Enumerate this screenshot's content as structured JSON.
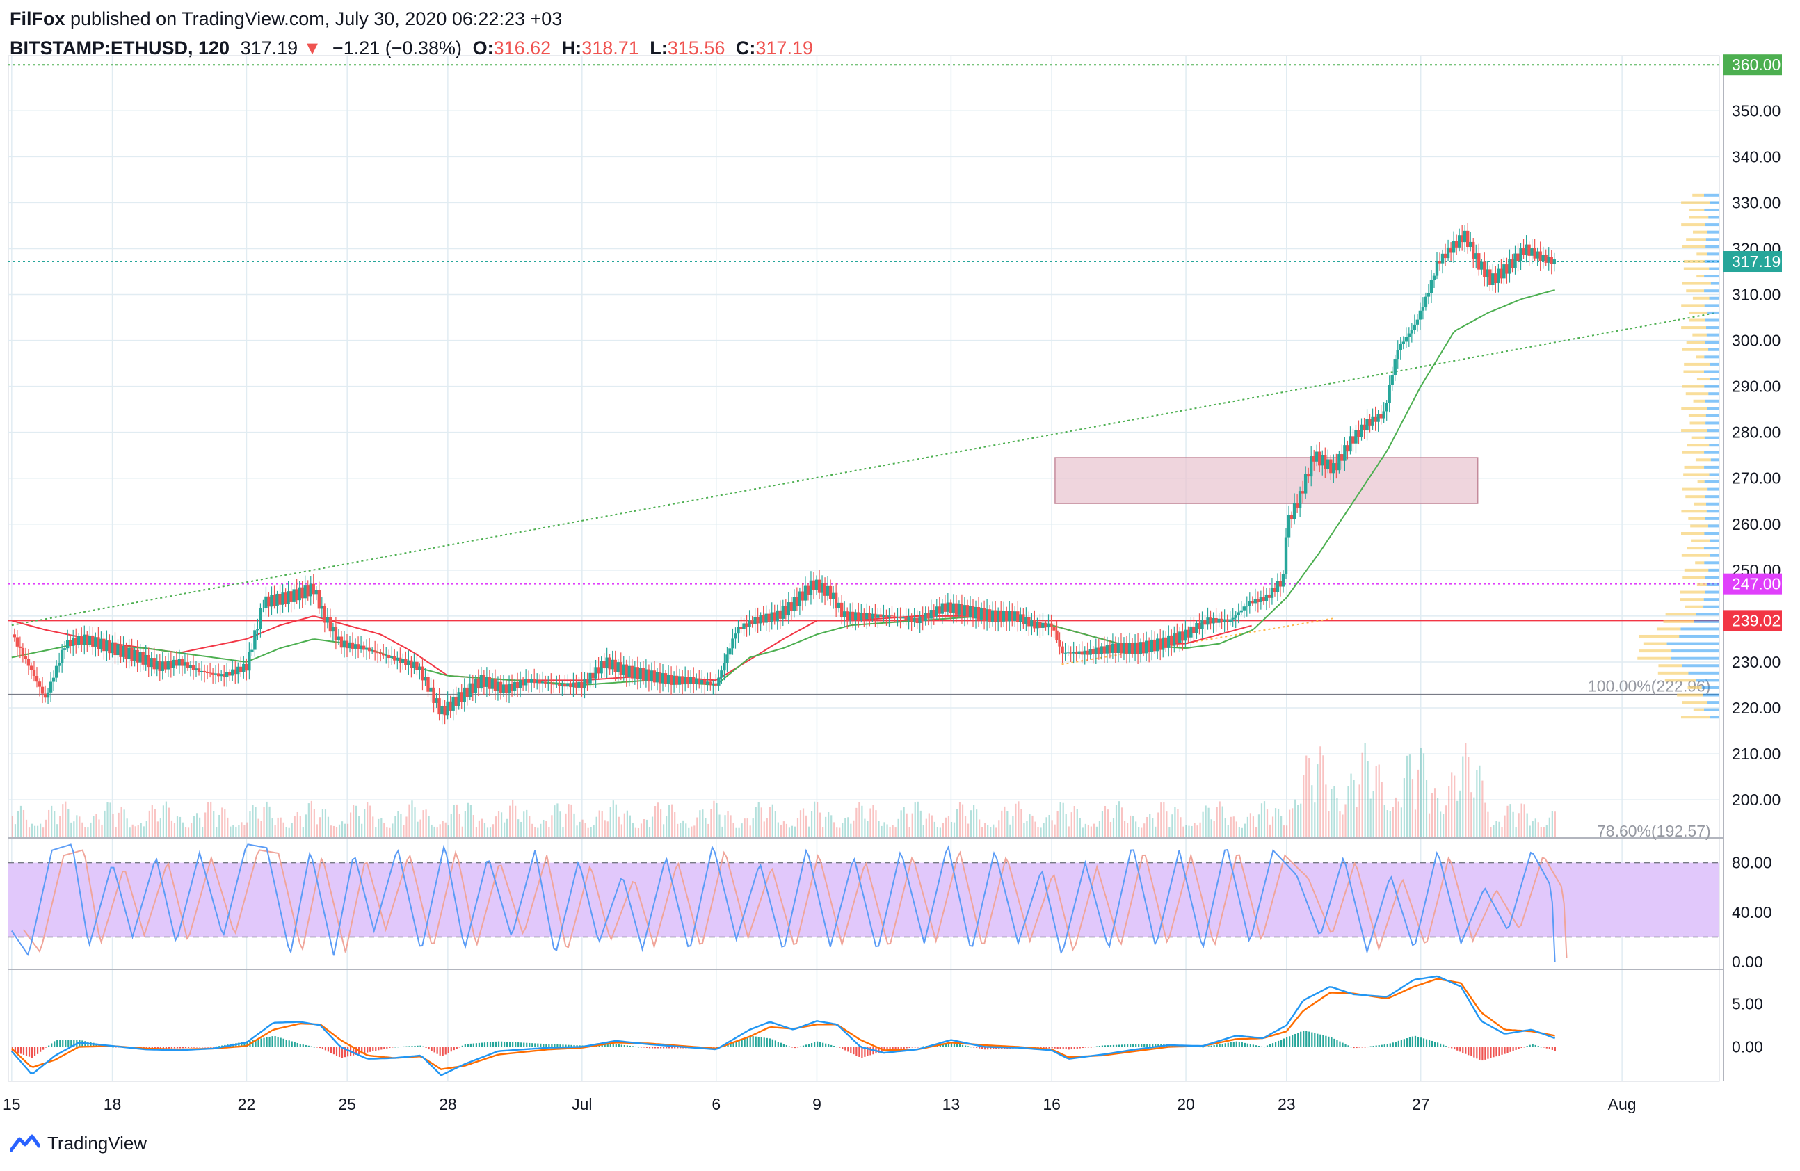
{
  "header": {
    "author": "FilFox",
    "published": "published on TradingView.com, July 30, 2020 06:22:23 +03",
    "symbol": "BITSTAMP:ETHUSD, 120",
    "last": "317.19",
    "change_arrow": "▼",
    "change": "−1.21 (−0.38%)",
    "o_label": "O:",
    "o": "316.62",
    "h_label": "H:",
    "h": "318.71",
    "l_label": "L:",
    "l": "315.56",
    "c_label": "C:",
    "c": "317.19"
  },
  "footer": {
    "brand": "TradingView"
  },
  "colors": {
    "up": "#26a69a",
    "down": "#ef5350",
    "grid": "#e1ecf2",
    "stoch_band": "#e1c8fb",
    "stoch_k": "#5b9cf6",
    "stoch_d": "#f0a59a",
    "macd": "#2196f3",
    "signal": "#ff6d00",
    "ma_green": "#4caf50",
    "ma_red": "#f23645",
    "zone": "#e8c3cf"
  },
  "chart_data": {
    "type": "candlestick",
    "symbol": "BITSTAMP:ETHUSD",
    "interval": "120",
    "x_ticks": [
      "15",
      "18",
      "22",
      "25",
      "28",
      "Jul",
      "6",
      "9",
      "13",
      "16",
      "20",
      "23",
      "27",
      "Aug"
    ],
    "x_tick_days": [
      15,
      18,
      22,
      25,
      28,
      32,
      36,
      39,
      43,
      46,
      50,
      53,
      57,
      63
    ],
    "x_range_days": [
      14.9,
      65.9
    ],
    "price_axis": {
      "ticks": [
        "200.00",
        "210.00",
        "220.00",
        "230.00",
        "240.00",
        "250.00",
        "260.00",
        "270.00",
        "280.00",
        "290.00",
        "300.00",
        "310.00",
        "320.00",
        "330.00",
        "340.00",
        "350.00"
      ],
      "ylim": [
        192,
        362
      ]
    },
    "price_labels": [
      {
        "value": "360.00",
        "color": "#4caf50"
      },
      {
        "value": "317.19",
        "color": "#26a69a"
      },
      {
        "value": "247.00",
        "color": "#e040fb"
      },
      {
        "value": "239.02",
        "color": "#f23645"
      }
    ],
    "horizontal_lines": [
      {
        "price": 360.0,
        "style": "dotted",
        "color": "#4caf50"
      },
      {
        "price": 317.19,
        "style": "dotted",
        "color": "#26a69a"
      },
      {
        "price": 247.0,
        "style": "dotted",
        "color": "#e040fb"
      },
      {
        "price": 239.02,
        "style": "solid",
        "color": "#f23645"
      },
      {
        "price": 222.9,
        "style": "solid",
        "color": "#787b86"
      }
    ],
    "trendlines": [
      {
        "from": {
          "day": 15.0,
          "price": 238
        },
        "to": {
          "day": 65.8,
          "price": 306
        },
        "color": "#4caf50"
      },
      {
        "from": {
          "day": 46.3,
          "price": 229.5
        },
        "to": {
          "day": 54.4,
          "price": 239.5
        },
        "color": "#ffb74d"
      }
    ],
    "zone": {
      "from_day": 46.1,
      "to_day": 58.7,
      "top": 274.5,
      "bottom": 264.5
    },
    "fib_labels": [
      "100.00%(222.96)",
      "78.60%(192.57)"
    ],
    "candles_ohlc_keypoints": [
      [
        15.0,
        236
      ],
      [
        15.6,
        228
      ],
      [
        16.0,
        222
      ],
      [
        16.6,
        234
      ],
      [
        17.2,
        235
      ],
      [
        18.0,
        233
      ],
      [
        18.8,
        231
      ],
      [
        19.4,
        229
      ],
      [
        20.0,
        230
      ],
      [
        20.6,
        228
      ],
      [
        21.3,
        227
      ],
      [
        22.0,
        229
      ],
      [
        22.5,
        243
      ],
      [
        23.2,
        244
      ],
      [
        24.0,
        246
      ],
      [
        24.3,
        240
      ],
      [
        24.8,
        234
      ],
      [
        25.5,
        233
      ],
      [
        26.3,
        231
      ],
      [
        27.1,
        229
      ],
      [
        27.8,
        219
      ],
      [
        28.3,
        222
      ],
      [
        29.0,
        226
      ],
      [
        29.7,
        224
      ],
      [
        30.4,
        226
      ],
      [
        31.3,
        225
      ],
      [
        32.0,
        225
      ],
      [
        32.7,
        230
      ],
      [
        33.3,
        228
      ],
      [
        34.0,
        227
      ],
      [
        34.7,
        226
      ],
      [
        35.3,
        226
      ],
      [
        36.0,
        225
      ],
      [
        36.6,
        237
      ],
      [
        37.1,
        239
      ],
      [
        37.8,
        240
      ],
      [
        38.2,
        242
      ],
      [
        38.9,
        247
      ],
      [
        39.4,
        245
      ],
      [
        39.8,
        240
      ],
      [
        40.5,
        240
      ],
      [
        41.2,
        240
      ],
      [
        42.0,
        239
      ],
      [
        42.8,
        242
      ],
      [
        43.5,
        241
      ],
      [
        44.2,
        240
      ],
      [
        44.9,
        240
      ],
      [
        45.5,
        238
      ],
      [
        46.0,
        238
      ],
      [
        46.3,
        232
      ],
      [
        47.0,
        232
      ],
      [
        47.8,
        233
      ],
      [
        48.6,
        233
      ],
      [
        49.3,
        234
      ],
      [
        50.0,
        236
      ],
      [
        50.6,
        239
      ],
      [
        51.3,
        239
      ],
      [
        51.9,
        243
      ],
      [
        52.4,
        244
      ],
      [
        52.9,
        248
      ],
      [
        53.0,
        260
      ],
      [
        53.4,
        266
      ],
      [
        53.8,
        275
      ],
      [
        54.4,
        272
      ],
      [
        54.9,
        278
      ],
      [
        55.4,
        282
      ],
      [
        55.9,
        284
      ],
      [
        56.3,
        298
      ],
      [
        56.8,
        303
      ],
      [
        57.2,
        310
      ],
      [
        57.5,
        317
      ],
      [
        57.9,
        320
      ],
      [
        58.3,
        323
      ],
      [
        58.7,
        317
      ],
      [
        59.1,
        313
      ],
      [
        59.6,
        316
      ],
      [
        60.1,
        320
      ],
      [
        60.6,
        318
      ],
      [
        61.0,
        317
      ]
    ],
    "sma_green_keypoints": [
      [
        15.0,
        231
      ],
      [
        17.0,
        234
      ],
      [
        19.0,
        233
      ],
      [
        21.0,
        231
      ],
      [
        22.0,
        230
      ],
      [
        23.0,
        233
      ],
      [
        24.0,
        235
      ],
      [
        25.0,
        234
      ],
      [
        26.0,
        232
      ],
      [
        27.0,
        229
      ],
      [
        28.0,
        227
      ],
      [
        30.0,
        226
      ],
      [
        32.0,
        225
      ],
      [
        34.0,
        226
      ],
      [
        36.0,
        225
      ],
      [
        37.0,
        231
      ],
      [
        38.0,
        233
      ],
      [
        39.0,
        236
      ],
      [
        40.0,
        238
      ],
      [
        42.0,
        239
      ],
      [
        44.0,
        240
      ],
      [
        46.0,
        238
      ],
      [
        48.0,
        234
      ],
      [
        50.0,
        233
      ],
      [
        51.0,
        234
      ],
      [
        52.0,
        237
      ],
      [
        53.0,
        244
      ],
      [
        54.0,
        254
      ],
      [
        55.0,
        265
      ],
      [
        56.0,
        276
      ],
      [
        57.0,
        290
      ],
      [
        58.0,
        302
      ],
      [
        59.0,
        306
      ],
      [
        60.0,
        309
      ],
      [
        61.0,
        311
      ]
    ],
    "sma_red_keypoints": [
      [
        15.0,
        239
      ],
      [
        16.0,
        237
      ],
      [
        18.0,
        234
      ],
      [
        20.0,
        232
      ],
      [
        22.0,
        235
      ],
      [
        23.0,
        238
      ],
      [
        24.0,
        240
      ],
      [
        25.0,
        238
      ],
      [
        26.0,
        236
      ],
      [
        27.0,
        232
      ],
      [
        28.0,
        227
      ],
      [
        30.0,
        226
      ],
      [
        32.0,
        226
      ],
      [
        34.0,
        227
      ],
      [
        36.0,
        226
      ],
      [
        38.0,
        235
      ],
      [
        39.0,
        239
      ],
      [
        40.0,
        239
      ],
      [
        42.0,
        240
      ],
      [
        44.0,
        240
      ],
      [
        46.0,
        238
      ],
      [
        48.0,
        234
      ],
      [
        50.0,
        234
      ],
      [
        52.0,
        238
      ]
    ],
    "stoch": {
      "ticks": [
        "0.00",
        "40.00",
        "80.00"
      ],
      "ylim": [
        -5,
        100
      ],
      "band": [
        20,
        80
      ],
      "k_keypoints": [
        [
          15.0,
          25
        ],
        [
          15.5,
          5
        ],
        [
          16.2,
          90
        ],
        [
          16.8,
          95
        ],
        [
          17.3,
          12
        ],
        [
          18.0,
          80
        ],
        [
          18.6,
          20
        ],
        [
          19.3,
          85
        ],
        [
          19.9,
          15
        ],
        [
          20.6,
          88
        ],
        [
          21.3,
          20
        ],
        [
          22.0,
          95
        ],
        [
          22.6,
          92
        ],
        [
          23.3,
          5
        ],
        [
          23.9,
          90
        ],
        [
          24.6,
          5
        ],
        [
          25.2,
          88
        ],
        [
          25.8,
          25
        ],
        [
          26.5,
          92
        ],
        [
          27.2,
          8
        ],
        [
          27.9,
          95
        ],
        [
          28.5,
          10
        ],
        [
          29.2,
          85
        ],
        [
          29.9,
          20
        ],
        [
          30.6,
          90
        ],
        [
          31.2,
          5
        ],
        [
          31.9,
          82
        ],
        [
          32.5,
          15
        ],
        [
          33.2,
          70
        ],
        [
          33.8,
          10
        ],
        [
          34.5,
          85
        ],
        [
          35.2,
          8
        ],
        [
          35.9,
          95
        ],
        [
          36.6,
          18
        ],
        [
          37.3,
          80
        ],
        [
          38.0,
          8
        ],
        [
          38.7,
          92
        ],
        [
          39.4,
          12
        ],
        [
          40.1,
          85
        ],
        [
          40.8,
          8
        ],
        [
          41.5,
          90
        ],
        [
          42.2,
          15
        ],
        [
          42.9,
          95
        ],
        [
          43.6,
          8
        ],
        [
          44.3,
          90
        ],
        [
          45.0,
          15
        ],
        [
          45.7,
          75
        ],
        [
          46.3,
          5
        ],
        [
          47.0,
          80
        ],
        [
          47.7,
          10
        ],
        [
          48.4,
          95
        ],
        [
          49.1,
          12
        ],
        [
          49.8,
          90
        ],
        [
          50.5,
          10
        ],
        [
          51.2,
          95
        ],
        [
          51.9,
          15
        ],
        [
          52.6,
          90
        ],
        [
          53.3,
          70
        ],
        [
          54.0,
          20
        ],
        [
          54.7,
          85
        ],
        [
          55.4,
          8
        ],
        [
          56.1,
          70
        ],
        [
          56.8,
          10
        ],
        [
          57.5,
          90
        ],
        [
          58.2,
          15
        ],
        [
          58.9,
          60
        ],
        [
          59.6,
          25
        ],
        [
          60.3,
          90
        ],
        [
          60.9,
          60
        ],
        [
          61.0,
          0
        ]
      ]
    },
    "macd": {
      "ticks": [
        "0.00",
        "5.00"
      ],
      "ylim": [
        -4,
        9
      ],
      "macd_keypoints": [
        [
          15.0,
          -0.5
        ],
        [
          15.6,
          -3.2
        ],
        [
          16.3,
          -1
        ],
        [
          17.0,
          0.5
        ],
        [
          18.0,
          0.1
        ],
        [
          19.0,
          -0.3
        ],
        [
          20.0,
          -0.4
        ],
        [
          21.0,
          -0.2
        ],
        [
          22.0,
          0.5
        ],
        [
          22.8,
          2.8
        ],
        [
          23.6,
          2.9
        ],
        [
          24.2,
          2.5
        ],
        [
          24.8,
          0
        ],
        [
          25.6,
          -1.4
        ],
        [
          26.4,
          -1.3
        ],
        [
          27.2,
          -1
        ],
        [
          27.8,
          -3.3
        ],
        [
          28.5,
          -2
        ],
        [
          29.5,
          -0.5
        ],
        [
          31.0,
          -0.1
        ],
        [
          32.0,
          0
        ],
        [
          33.0,
          0.7
        ],
        [
          34.0,
          0.3
        ],
        [
          35.0,
          0
        ],
        [
          36.0,
          -0.3
        ],
        [
          37.0,
          2
        ],
        [
          37.6,
          2.9
        ],
        [
          38.3,
          2
        ],
        [
          39.0,
          3
        ],
        [
          39.6,
          2.6
        ],
        [
          40.3,
          0
        ],
        [
          41.0,
          -0.7
        ],
        [
          42.0,
          -0.3
        ],
        [
          43.0,
          0.8
        ],
        [
          44.0,
          0
        ],
        [
          45.0,
          -0.1
        ],
        [
          46.0,
          -0.4
        ],
        [
          46.5,
          -1.4
        ],
        [
          47.5,
          -0.9
        ],
        [
          48.5,
          -0.3
        ],
        [
          49.5,
          0.2
        ],
        [
          50.5,
          0.1
        ],
        [
          51.5,
          1.3
        ],
        [
          52.3,
          1
        ],
        [
          53.0,
          2.5
        ],
        [
          53.5,
          5.4
        ],
        [
          54.3,
          7
        ],
        [
          55.0,
          6.1
        ],
        [
          56.0,
          5.8
        ],
        [
          56.8,
          7.8
        ],
        [
          57.5,
          8.2
        ],
        [
          58.2,
          7
        ],
        [
          58.8,
          3
        ],
        [
          59.5,
          1.5
        ],
        [
          60.3,
          2
        ],
        [
          61.0,
          1
        ]
      ],
      "signal_keypoints": [
        [
          15.0,
          -0.2
        ],
        [
          15.6,
          -2.4
        ],
        [
          16.3,
          -1.5
        ],
        [
          17.0,
          0
        ],
        [
          18.0,
          0.1
        ],
        [
          19.0,
          -0.2
        ],
        [
          20.0,
          -0.3
        ],
        [
          21.0,
          -0.2
        ],
        [
          22.0,
          0.1
        ],
        [
          22.8,
          2
        ],
        [
          23.6,
          2.7
        ],
        [
          24.2,
          2.6
        ],
        [
          24.8,
          0.8
        ],
        [
          25.6,
          -1
        ],
        [
          26.4,
          -1.3
        ],
        [
          27.2,
          -1.1
        ],
        [
          27.8,
          -2.6
        ],
        [
          28.5,
          -2.2
        ],
        [
          29.5,
          -0.9
        ],
        [
          31.0,
          -0.3
        ],
        [
          32.0,
          -0.1
        ],
        [
          33.0,
          0.5
        ],
        [
          34.0,
          0.4
        ],
        [
          35.0,
          0.1
        ],
        [
          36.0,
          -0.2
        ],
        [
          37.0,
          1.2
        ],
        [
          37.6,
          2.3
        ],
        [
          38.3,
          2.1
        ],
        [
          39.0,
          2.6
        ],
        [
          39.6,
          2.6
        ],
        [
          40.3,
          0.8
        ],
        [
          41.0,
          -0.4
        ],
        [
          42.0,
          -0.3
        ],
        [
          43.0,
          0.5
        ],
        [
          44.0,
          0.2
        ],
        [
          45.0,
          0
        ],
        [
          46.0,
          -0.3
        ],
        [
          46.5,
          -1.2
        ],
        [
          47.5,
          -1
        ],
        [
          48.5,
          -0.5
        ],
        [
          49.5,
          0
        ],
        [
          50.5,
          0.1
        ],
        [
          51.5,
          0.9
        ],
        [
          52.3,
          1
        ],
        [
          53.0,
          1.8
        ],
        [
          53.5,
          4.2
        ],
        [
          54.3,
          6.3
        ],
        [
          55.0,
          6.2
        ],
        [
          56.0,
          5.6
        ],
        [
          56.8,
          7
        ],
        [
          57.5,
          7.9
        ],
        [
          58.2,
          7.4
        ],
        [
          58.8,
          4
        ],
        [
          59.5,
          2
        ],
        [
          60.3,
          1.8
        ],
        [
          61.0,
          1.3
        ]
      ]
    }
  }
}
